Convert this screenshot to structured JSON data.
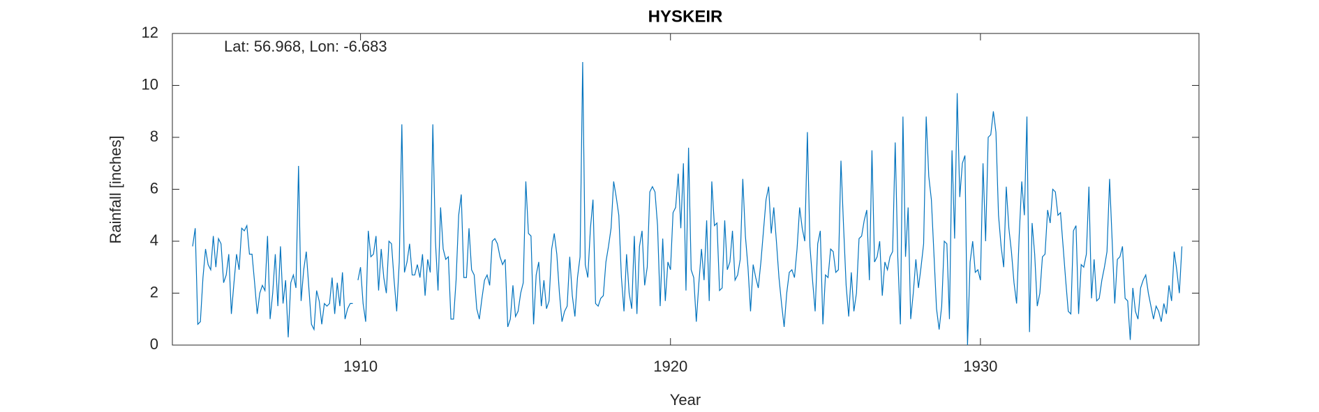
{
  "chart_data": {
    "type": "line",
    "title": "HYSKEIR",
    "annotation": "Lat: 56.968, Lon: -6.683",
    "x_label": "Year",
    "y_label": "Rainfall [inches]",
    "color": "#0072bd",
    "xlim": [
      1903.93,
      1937.05
    ],
    "xticks": [
      1910,
      1920,
      1930
    ],
    "ylim": [
      0,
      12
    ],
    "yticks": [
      0,
      2,
      4,
      6,
      8,
      10,
      12
    ],
    "x": [
      1904.583,
      1904.667,
      1904.75,
      1904.833,
      1904.917,
      1905,
      1905.083,
      1905.167,
      1905.25,
      1905.333,
      1905.417,
      1905.5,
      1905.583,
      1905.667,
      1905.75,
      1905.833,
      1905.917,
      1906,
      1906.083,
      1906.167,
      1906.25,
      1906.333,
      1906.417,
      1906.5,
      1906.583,
      1906.667,
      1906.75,
      1906.833,
      1906.917,
      1907,
      1907.083,
      1907.167,
      1907.25,
      1907.333,
      1907.417,
      1907.5,
      1907.583,
      1907.667,
      1907.75,
      1907.833,
      1907.917,
      1908,
      1908.083,
      1908.167,
      1908.25,
      1908.333,
      1908.417,
      1908.5,
      1908.583,
      1908.667,
      1908.75,
      1908.833,
      1908.917,
      1909,
      1909.083,
      1909.167,
      1909.25,
      1909.333,
      1909.417,
      1909.5,
      1909.583,
      1909.667,
      1909.75,
      1909.833,
      1909.917,
      1910,
      1910.083,
      1910.167,
      1910.25,
      1910.333,
      1910.417,
      1910.5,
      1910.583,
      1910.667,
      1910.75,
      1910.833,
      1910.917,
      1911,
      1911.083,
      1911.167,
      1911.25,
      1911.333,
      1911.417,
      1911.5,
      1911.583,
      1911.667,
      1911.75,
      1911.833,
      1911.917,
      1912,
      1912.083,
      1912.167,
      1912.25,
      1912.333,
      1912.417,
      1912.5,
      1912.583,
      1912.667,
      1912.75,
      1912.833,
      1912.917,
      1913,
      1913.083,
      1913.167,
      1913.25,
      1913.333,
      1913.417,
      1913.5,
      1913.583,
      1913.667,
      1913.75,
      1913.833,
      1913.917,
      1914,
      1914.083,
      1914.167,
      1914.25,
      1914.333,
      1914.417,
      1914.5,
      1914.583,
      1914.667,
      1914.75,
      1914.833,
      1914.917,
      1915,
      1915.083,
      1915.167,
      1915.25,
      1915.333,
      1915.417,
      1915.5,
      1915.583,
      1915.667,
      1915.75,
      1915.833,
      1915.917,
      1916,
      1916.083,
      1916.167,
      1916.25,
      1916.333,
      1916.417,
      1916.5,
      1916.583,
      1916.667,
      1916.75,
      1916.833,
      1916.917,
      1917,
      1917.083,
      1917.167,
      1917.25,
      1917.333,
      1917.417,
      1917.5,
      1917.583,
      1917.667,
      1917.75,
      1917.833,
      1917.917,
      1918,
      1918.083,
      1918.167,
      1918.25,
      1918.333,
      1918.417,
      1918.5,
      1918.583,
      1918.667,
      1918.75,
      1918.833,
      1918.917,
      1919,
      1919.083,
      1919.167,
      1919.25,
      1919.333,
      1919.417,
      1919.5,
      1919.583,
      1919.667,
      1919.75,
      1919.833,
      1919.917,
      1920,
      1920.083,
      1920.167,
      1920.25,
      1920.333,
      1920.417,
      1920.5,
      1920.583,
      1920.667,
      1920.75,
      1920.833,
      1920.917,
      1921,
      1921.083,
      1921.167,
      1921.25,
      1921.333,
      1921.417,
      1921.5,
      1921.583,
      1921.667,
      1921.75,
      1921.833,
      1921.917,
      1922,
      1922.083,
      1922.167,
      1922.25,
      1922.333,
      1922.417,
      1922.5,
      1922.583,
      1922.667,
      1922.75,
      1922.833,
      1922.917,
      1923,
      1923.083,
      1923.167,
      1923.25,
      1923.333,
      1923.417,
      1923.5,
      1923.583,
      1923.667,
      1923.75,
      1923.833,
      1923.917,
      1924,
      1924.083,
      1924.167,
      1924.25,
      1924.333,
      1924.417,
      1924.5,
      1924.583,
      1924.667,
      1924.75,
      1924.833,
      1924.917,
      1925,
      1925.083,
      1925.167,
      1925.25,
      1925.333,
      1925.417,
      1925.5,
      1925.583,
      1925.667,
      1925.75,
      1925.833,
      1925.917,
      1926,
      1926.083,
      1926.167,
      1926.25,
      1926.333,
      1926.417,
      1926.5,
      1926.583,
      1926.667,
      1926.75,
      1926.833,
      1926.917,
      1927,
      1927.083,
      1927.167,
      1927.25,
      1927.333,
      1927.417,
      1927.5,
      1927.583,
      1927.667,
      1927.75,
      1927.833,
      1927.917,
      1928,
      1928.083,
      1928.167,
      1928.25,
      1928.333,
      1928.417,
      1928.5,
      1928.583,
      1928.667,
      1928.75,
      1928.833,
      1928.917,
      1929,
      1929.083,
      1929.167,
      1929.25,
      1929.333,
      1929.417,
      1929.5,
      1929.583,
      1929.667,
      1929.75,
      1929.833,
      1929.917,
      1930,
      1930.083,
      1930.167,
      1930.25,
      1930.333,
      1930.417,
      1930.5,
      1930.583,
      1930.667,
      1930.75,
      1930.833,
      1930.917,
      1931,
      1931.083,
      1931.167,
      1931.25,
      1931.333,
      1931.417,
      1931.5,
      1931.583,
      1931.667,
      1931.75,
      1931.833,
      1931.917,
      1932,
      1932.083,
      1932.167,
      1932.25,
      1932.333,
      1932.417,
      1932.5,
      1932.583,
      1932.667,
      1932.75,
      1932.833,
      1932.917,
      1933,
      1933.083,
      1933.167,
      1933.25,
      1933.333,
      1933.417,
      1933.5,
      1933.583,
      1933.667,
      1933.75,
      1933.833,
      1933.917,
      1934,
      1934.083,
      1934.167,
      1934.25,
      1934.333,
      1934.417,
      1934.5,
      1934.583,
      1934.667,
      1934.75,
      1934.833,
      1934.917,
      1935,
      1935.083,
      1935.167,
      1935.25,
      1935.333,
      1935.417,
      1935.5,
      1935.583,
      1935.667,
      1935.75,
      1935.833,
      1935.917,
      1936,
      1936.083,
      1936.167,
      1936.25,
      1936.333,
      1936.417,
      1936.5
    ],
    "values": [
      3.8,
      4.5,
      0.8,
      0.9,
      2.6,
      3.7,
      3.1,
      2.9,
      4.2,
      3.0,
      4.1,
      3.9,
      2.4,
      2.7,
      3.5,
      1.2,
      2.4,
      3.5,
      2.9,
      4.5,
      4.4,
      4.6,
      3.5,
      3.5,
      2.4,
      1.2,
      2.0,
      2.3,
      2.1,
      4.2,
      1.0,
      2.0,
      3.5,
      1.5,
      3.8,
      1.6,
      2.5,
      0.3,
      2.4,
      2.7,
      2.2,
      6.9,
      1.7,
      2.9,
      3.6,
      2.2,
      0.8,
      0.6,
      2.1,
      1.7,
      0.8,
      1.6,
      1.5,
      1.6,
      2.6,
      1.2,
      2.4,
      1.5,
      2.8,
      1.0,
      1.4,
      1.6,
      1.6,
      null,
      2.5,
      3.0,
      1.6,
      0.9,
      4.4,
      3.4,
      3.5,
      4.2,
      2.1,
      3.7,
      2.6,
      2.0,
      4.0,
      3.9,
      2.5,
      1.3,
      3.2,
      8.5,
      2.8,
      3.2,
      3.9,
      2.7,
      2.7,
      3.1,
      2.6,
      3.5,
      1.9,
      3.3,
      2.8,
      8.5,
      4.0,
      2.1,
      5.3,
      3.7,
      3.3,
      3.4,
      1.0,
      1.0,
      2.5,
      5.0,
      5.8,
      2.6,
      2.6,
      4.5,
      2.9,
      2.7,
      1.4,
      1.0,
      1.8,
      2.5,
      2.7,
      2.3,
      4.0,
      4.1,
      3.9,
      3.4,
      3.1,
      3.3,
      0.7,
      1.0,
      2.3,
      1.1,
      1.3,
      2.0,
      2.4,
      6.3,
      4.3,
      4.2,
      0.8,
      2.7,
      3.2,
      1.5,
      2.5,
      1.4,
      1.7,
      3.7,
      4.3,
      3.5,
      2.0,
      0.9,
      1.3,
      1.5,
      3.4,
      1.9,
      1.1,
      2.6,
      3.4,
      10.9,
      3.1,
      2.6,
      4.5,
      5.6,
      1.6,
      1.5,
      1.8,
      1.9,
      3.2,
      3.8,
      4.5,
      6.3,
      5.7,
      5.0,
      2.6,
      1.3,
      3.5,
      2.0,
      1.4,
      4.2,
      1.2,
      3.8,
      4.4,
      2.3,
      3.0,
      5.9,
      6.1,
      5.9,
      4.6,
      1.5,
      4.1,
      1.7,
      3.2,
      2.9,
      5.1,
      5.3,
      6.6,
      4.5,
      7.0,
      2.1,
      7.6,
      2.9,
      2.6,
      0.9,
      2.4,
      3.7,
      2.5,
      4.8,
      1.7,
      6.3,
      4.6,
      4.7,
      2.1,
      2.2,
      4.8,
      2.9,
      3.2,
      4.4,
      2.5,
      2.7,
      3.3,
      6.4,
      4.2,
      3.0,
      1.3,
      3.1,
      2.6,
      2.2,
      3.2,
      4.4,
      5.6,
      6.1,
      4.3,
      5.3,
      4.0,
      2.6,
      1.6,
      0.7,
      2.0,
      2.8,
      2.9,
      2.6,
      3.7,
      5.3,
      4.5,
      4.0,
      8.2,
      3.8,
      2.5,
      1.3,
      3.9,
      4.4,
      0.8,
      2.7,
      2.6,
      3.7,
      3.6,
      2.8,
      2.9,
      7.1,
      4.6,
      2.3,
      1.1,
      2.8,
      1.3,
      2.0,
      4.1,
      4.2,
      4.8,
      5.2,
      2.5,
      7.5,
      3.2,
      3.4,
      4.0,
      1.9,
      3.2,
      2.9,
      3.4,
      3.6,
      7.8,
      3.4,
      0.8,
      8.8,
      3.4,
      5.3,
      1.0,
      2.0,
      3.3,
      2.2,
      3.0,
      3.9,
      8.8,
      6.5,
      5.6,
      3.5,
      1.4,
      0.6,
      1.5,
      4.0,
      3.9,
      1.0,
      7.5,
      4.1,
      9.7,
      5.7,
      7.0,
      7.3,
      0.0,
      3.2,
      4.0,
      2.8,
      2.9,
      2.5,
      7.0,
      4.0,
      8.0,
      8.1,
      9.0,
      8.2,
      5.0,
      3.8,
      3.0,
      6.1,
      4.5,
      3.6,
      2.4,
      1.6,
      4.2,
      6.3,
      5.0,
      8.8,
      0.5,
      4.7,
      3.5,
      1.5,
      2.0,
      3.4,
      3.5,
      5.2,
      4.7,
      6.0,
      5.9,
      5.0,
      5.1,
      3.8,
      2.5,
      1.3,
      1.2,
      4.4,
      4.6,
      1.2,
      3.1,
      3.0,
      3.5,
      6.1,
      1.8,
      3.3,
      1.7,
      1.8,
      2.5,
      3.0,
      3.6,
      6.4,
      4.0,
      1.6,
      3.3,
      3.4,
      3.8,
      1.8,
      1.7,
      0.2,
      2.2,
      1.3,
      1.0,
      2.2,
      2.5,
      2.7,
      2.0,
      1.5,
      1.0,
      1.5,
      1.3,
      0.9,
      1.6,
      1.2,
      2.3,
      1.7,
      3.6,
      2.9,
      2.0,
      3.8
    ]
  }
}
